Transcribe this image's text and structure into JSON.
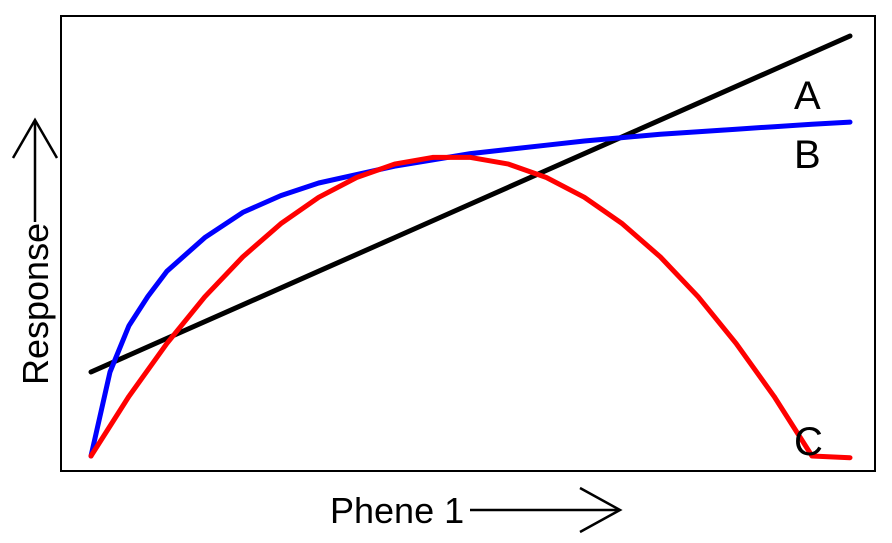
{
  "chart_data": {
    "type": "line",
    "title": "",
    "xlabel": "Phene 1",
    "ylabel": "Response",
    "xlim": [
      0,
      1
    ],
    "ylim": [
      0,
      1
    ],
    "grid": false,
    "axis_ticks": false,
    "axis_arrows": true,
    "series": [
      {
        "name": "A",
        "color": "#000000",
        "x": [
          0,
          0.1,
          0.2,
          0.3,
          0.4,
          0.5,
          0.6,
          0.7,
          0.8,
          0.9,
          1.0
        ],
        "values": [
          0.2,
          0.28,
          0.36,
          0.44,
          0.52,
          0.6,
          0.68,
          0.76,
          0.84,
          0.92,
          1.0
        ]
      },
      {
        "name": "B",
        "color": "#0000ff",
        "x": [
          0,
          0.025,
          0.05,
          0.075,
          0.1,
          0.15,
          0.2,
          0.25,
          0.3,
          0.35,
          0.4,
          0.45,
          0.5,
          0.55,
          0.6,
          0.65,
          0.7,
          0.75,
          0.8,
          0.85,
          0.9,
          0.95,
          1.0
        ],
        "values": [
          0.0,
          0.2,
          0.31,
          0.38,
          0.44,
          0.52,
          0.58,
          0.62,
          0.65,
          0.67,
          0.69,
          0.705,
          0.72,
          0.73,
          0.74,
          0.75,
          0.758,
          0.766,
          0.772,
          0.778,
          0.784,
          0.79,
          0.795
        ]
      },
      {
        "name": "C",
        "color": "#ff0000",
        "x": [
          0,
          0.05,
          0.1,
          0.15,
          0.2,
          0.25,
          0.3,
          0.35,
          0.4,
          0.45,
          0.5,
          0.55,
          0.6,
          0.65,
          0.7,
          0.75,
          0.8,
          0.85,
          0.9,
          0.95,
          1.0
        ],
        "values": [
          0.0,
          0.142,
          0.268,
          0.379,
          0.474,
          0.553,
          0.616,
          0.663,
          0.695,
          0.711,
          0.711,
          0.695,
          0.663,
          0.616,
          0.553,
          0.474,
          0.379,
          0.268,
          0.142,
          0.0,
          -0.004
        ]
      }
    ],
    "labels": [
      "A",
      "B",
      "C"
    ]
  }
}
